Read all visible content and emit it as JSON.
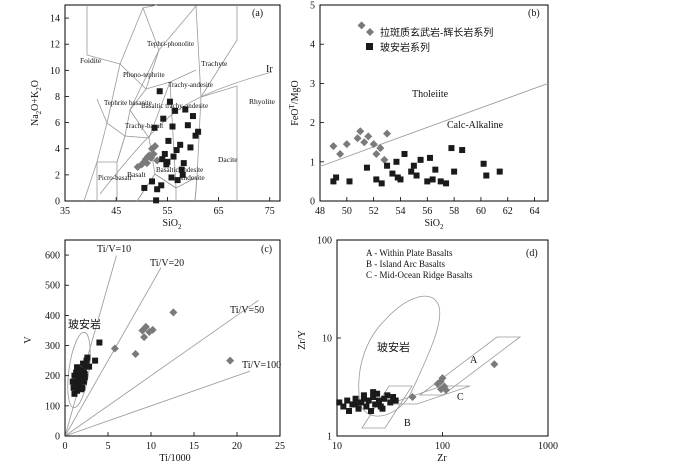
{
  "chart_data": [
    {
      "panel": "(a)",
      "type": "scatter",
      "xlabel": "SiO2",
      "ylabel": "Na2O+K2O",
      "xlim": [
        35,
        77
      ],
      "ylim": [
        0,
        15
      ],
      "xticks": [
        35,
        45,
        55,
        65,
        75
      ],
      "yticks": [
        0,
        2,
        4,
        6,
        8,
        10,
        12,
        14
      ],
      "field_labels": [
        "Foidite",
        "Tephri-phonolite",
        "Phono-tephrite",
        "Trachyte",
        "Trachy-andesite",
        "Tephrite basanite",
        "Basaltic trachy-andesite",
        "Rhyolite",
        "Trachy-basalt",
        "Dacite",
        "Picro-basalt",
        "Basalt",
        "Basaltic andesite",
        "Andesite",
        "Ir"
      ],
      "series": [
        {
          "name": "拉斑质玄武岩-辉长岩系列",
          "marker": "diamond",
          "color": "#7a7a7a",
          "x": [
            49.2,
            50.0,
            50.5,
            50.8,
            51.2,
            51.5,
            51.8,
            52.0,
            52.3,
            52.6,
            53.0,
            51.0
          ],
          "y": [
            2.6,
            2.8,
            3.0,
            3.2,
            3.4,
            3.5,
            3.3,
            4.0,
            3.6,
            4.2,
            3.1,
            2.9
          ]
        },
        {
          "name": "玻安岩系列",
          "marker": "square",
          "color": "#1a1a1a",
          "x": [
            50.5,
            52.0,
            52.5,
            53.5,
            54.0,
            54.2,
            54.8,
            55.0,
            55.5,
            56.0,
            56.2,
            57.0,
            57.5,
            58.0,
            58.5,
            59.0,
            60.0,
            60.5,
            61.0,
            54.5,
            55.8,
            56.8,
            53.0,
            52.8,
            57.8,
            55.2,
            59.5,
            58.2,
            53.8,
            56.5
          ],
          "y": [
            1.0,
            1.5,
            5.6,
            8.4,
            3.2,
            6.3,
            2.8,
            3.0,
            7.6,
            5.7,
            3.4,
            1.6,
            4.3,
            2.0,
            7.0,
            5.8,
            6.5,
            5.0,
            5.3,
            3.6,
            1.8,
            3.9,
            0.9,
            0.05,
            2.4,
            4.6,
            4.1,
            2.9,
            1.2,
            6.9
          ]
        }
      ]
    },
    {
      "panel": "(b)",
      "type": "scatter",
      "xlabel": "SiO2",
      "ylabel": "FeOT/MgO",
      "xlim": [
        48,
        65
      ],
      "ylim": [
        0,
        5
      ],
      "xticks": [
        48,
        50,
        52,
        54,
        56,
        58,
        60,
        62,
        64
      ],
      "yticks": [
        0,
        1,
        2,
        3,
        4,
        5
      ],
      "region_labels": [
        "Tholeiite",
        "Calc-Alkaline"
      ],
      "divider": {
        "x": [
          48,
          65
        ],
        "y": [
          0.88,
          3.0
        ]
      },
      "legend": [
        "拉斑质玄武岩-辉长岩系列",
        "玻安岩系列"
      ],
      "series": [
        {
          "name": "拉斑质玄武岩-辉长岩系列",
          "marker": "diamond",
          "color": "#7a7a7a",
          "x": [
            49.0,
            50.0,
            50.8,
            51.0,
            51.3,
            51.6,
            52.0,
            52.2,
            52.5,
            52.8,
            53.0,
            51.1,
            49.5
          ],
          "y": [
            1.4,
            1.45,
            1.6,
            1.78,
            1.5,
            1.65,
            1.45,
            1.2,
            1.35,
            1.05,
            1.72,
            4.48,
            1.2
          ]
        },
        {
          "name": "玻安岩系列",
          "marker": "square",
          "color": "#1a1a1a",
          "x": [
            49.0,
            49.2,
            50.2,
            51.5,
            52.2,
            52.6,
            53.0,
            53.4,
            53.7,
            54.0,
            54.3,
            54.8,
            55.0,
            55.5,
            56.0,
            56.2,
            56.6,
            57.0,
            57.4,
            58.0,
            58.6,
            60.2,
            60.4,
            61.4,
            56.4,
            53.8,
            55.2,
            57.8
          ],
          "y": [
            0.5,
            0.6,
            0.5,
            0.85,
            0.55,
            0.45,
            0.9,
            0.7,
            1.0,
            0.55,
            1.2,
            0.75,
            0.9,
            1.05,
            0.5,
            1.1,
            0.8,
            0.5,
            0.45,
            0.75,
            1.3,
            0.95,
            0.65,
            0.75,
            0.55,
            0.6,
            0.65,
            1.35
          ]
        }
      ]
    },
    {
      "panel": "(c)",
      "type": "scatter",
      "xlabel": "Ti/1000",
      "ylabel": "V",
      "xlim": [
        0,
        25
      ],
      "ylim": [
        0,
        650
      ],
      "xticks": [
        0,
        5,
        10,
        15,
        20,
        25
      ],
      "yticks": [
        0,
        100,
        200,
        300,
        400,
        500,
        600
      ],
      "ratio_lines": [
        "Ti/V=10",
        "Ti/V=20",
        "Ti/V=50",
        "Ti/V=100"
      ],
      "field_label": "玻安岩",
      "series": [
        {
          "name": "拉斑质玄武岩-辉长岩系列",
          "marker": "diamond",
          "color": "#7a7a7a",
          "x": [
            5.8,
            8.2,
            9.0,
            9.4,
            9.8,
            10.2,
            9.2,
            12.6,
            19.2
          ],
          "y": [
            290,
            272,
            350,
            362,
            345,
            352,
            328,
            410,
            250
          ]
        },
        {
          "name": "玻安岩系列",
          "marker": "square",
          "color": "#1a1a1a",
          "x": [
            0.9,
            1.0,
            1.1,
            1.2,
            1.3,
            1.4,
            1.5,
            1.6,
            1.7,
            1.8,
            1.9,
            2.0,
            2.1,
            2.2,
            2.3,
            2.4,
            2.5,
            1.1,
            1.3,
            1.5,
            1.7,
            1.9,
            2.2,
            2.6,
            2.8,
            3.5,
            4.0,
            1.4,
            1.9,
            2.3
          ],
          "y": [
            180,
            160,
            200,
            175,
            210,
            150,
            190,
            170,
            220,
            200,
            185,
            160,
            240,
            210,
            195,
            230,
            250,
            140,
            165,
            205,
            175,
            215,
            180,
            260,
            230,
            250,
            310,
            228,
            155,
            205
          ]
        }
      ]
    },
    {
      "panel": "(d)",
      "type": "scatter",
      "xlabel": "Zr",
      "ylabel": "Zr/Y",
      "xscale": "log",
      "yscale": "log",
      "xlim": [
        10,
        1000
      ],
      "ylim": [
        1,
        100
      ],
      "xticks": [
        10,
        100,
        1000
      ],
      "yticks": [
        1,
        10,
        100
      ],
      "legend_text": [
        "A - Within Plate Basalts",
        "B - Island Arc Basalts",
        "C - Mid-Ocean Ridge Basalts"
      ],
      "region_labels": [
        "A",
        "B",
        "C"
      ],
      "field_label": "玻安岩",
      "series": [
        {
          "name": "拉斑质玄武岩-辉长岩系列",
          "marker": "diamond",
          "color": "#7a7a7a",
          "x": [
            52,
            90,
            97,
            100,
            104,
            108,
            96,
            310
          ],
          "y": [
            2.5,
            3.4,
            3.0,
            3.9,
            3.2,
            2.95,
            3.6,
            5.4
          ]
        },
        {
          "name": "玻安岩系列",
          "marker": "square",
          "color": "#1a1a1a",
          "x": [
            10.5,
            11.5,
            12.5,
            13,
            14,
            15,
            16,
            17,
            18,
            19,
            20,
            21,
            22,
            23,
            24,
            25,
            26,
            28,
            30,
            32,
            34,
            36,
            27,
            22,
            18,
            15
          ],
          "y": [
            2.2,
            2.0,
            2.3,
            1.8,
            2.1,
            2.4,
            1.9,
            2.2,
            2.6,
            2.0,
            2.3,
            1.8,
            2.5,
            2.1,
            2.7,
            2.3,
            2.0,
            2.4,
            2.6,
            2.2,
            2.5,
            2.3,
            1.9,
            2.8,
            2.4,
            2.1
          ]
        }
      ]
    }
  ]
}
